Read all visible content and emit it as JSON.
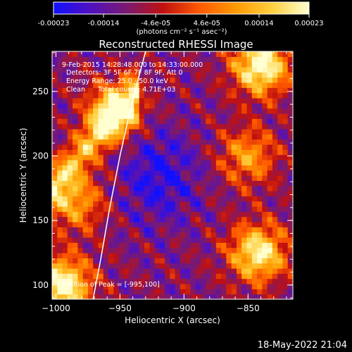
{
  "colorbar": {
    "tick_labels": [
      "-0.00023",
      "-0.00014",
      "-4.6e-05",
      "4.6e-05",
      "0.00014",
      "0.00023"
    ],
    "tick_values": [
      -0.00023,
      -0.00014,
      -4.6e-05,
      4.6e-05,
      0.00014,
      0.00023
    ],
    "range": [
      -0.00023,
      0.00023
    ],
    "unit_label": "(photons cm⁻² s⁻¹ asec⁻²)",
    "colors": [
      "#1010ff",
      "#5010c0",
      "#7a1a70",
      "#c01010",
      "#ff5a00",
      "#ff9a00",
      "#ffd040",
      "#ffffd0"
    ]
  },
  "chart_data": {
    "type": "heatmap",
    "title": "Reconstructed RHESSI Image",
    "xlabel": "Heliocentric X (arcsec)",
    "ylabel": "Heliocentric Y (arcsec)",
    "xlim": [
      -1003,
      -815
    ],
    "ylim": [
      89,
      281
    ],
    "x_ticks": [
      -1000,
      -950,
      -900,
      -850
    ],
    "x_tick_labels": [
      "−1000",
      "−950",
      "−900",
      "−850"
    ],
    "y_ticks": [
      100,
      150,
      200,
      250
    ],
    "y_tick_labels": [
      "100",
      "150",
      "200",
      "250"
    ],
    "annotations": [
      "9-Feb-2015 14:28:48.000 to 14:33:00.000",
      "Detectors: 3F 5F 6F 7F 8F 9F, Att 0",
      "Energy Range: 25.0 - 50.0 keV",
      "Clean      Total counts: 4.71E+03",
      "Position of Peak = [-995,100]"
    ],
    "peak_position": [
      -995,
      100
    ],
    "limb_points": [
      [
        -971,
        89
      ],
      [
        -965,
        120
      ],
      [
        -958,
        160
      ],
      [
        -950,
        200
      ],
      [
        -941,
        240
      ],
      [
        -930,
        281
      ]
    ],
    "emission_regions": [
      {
        "description": "bright source top-right",
        "center": [
          -840,
          270
        ],
        "level": 1.0
      },
      {
        "description": "bright source lower-right",
        "center": [
          -842,
          125
        ],
        "level": 0.9
      },
      {
        "description": "bright source lower-left",
        "center": [
          -995,
          100
        ],
        "level": 1.0
      },
      {
        "description": "diagonal bright band",
        "center": [
          -955,
          235
        ],
        "level": 0.75
      },
      {
        "description": "left edge emission",
        "center": [
          -985,
          165
        ],
        "level": 0.6
      },
      {
        "description": "right middle blobs",
        "center": [
          -850,
          200
        ],
        "level": 0.55
      }
    ]
  },
  "footer": {
    "timestamp": "18-May-2022 21:04"
  }
}
